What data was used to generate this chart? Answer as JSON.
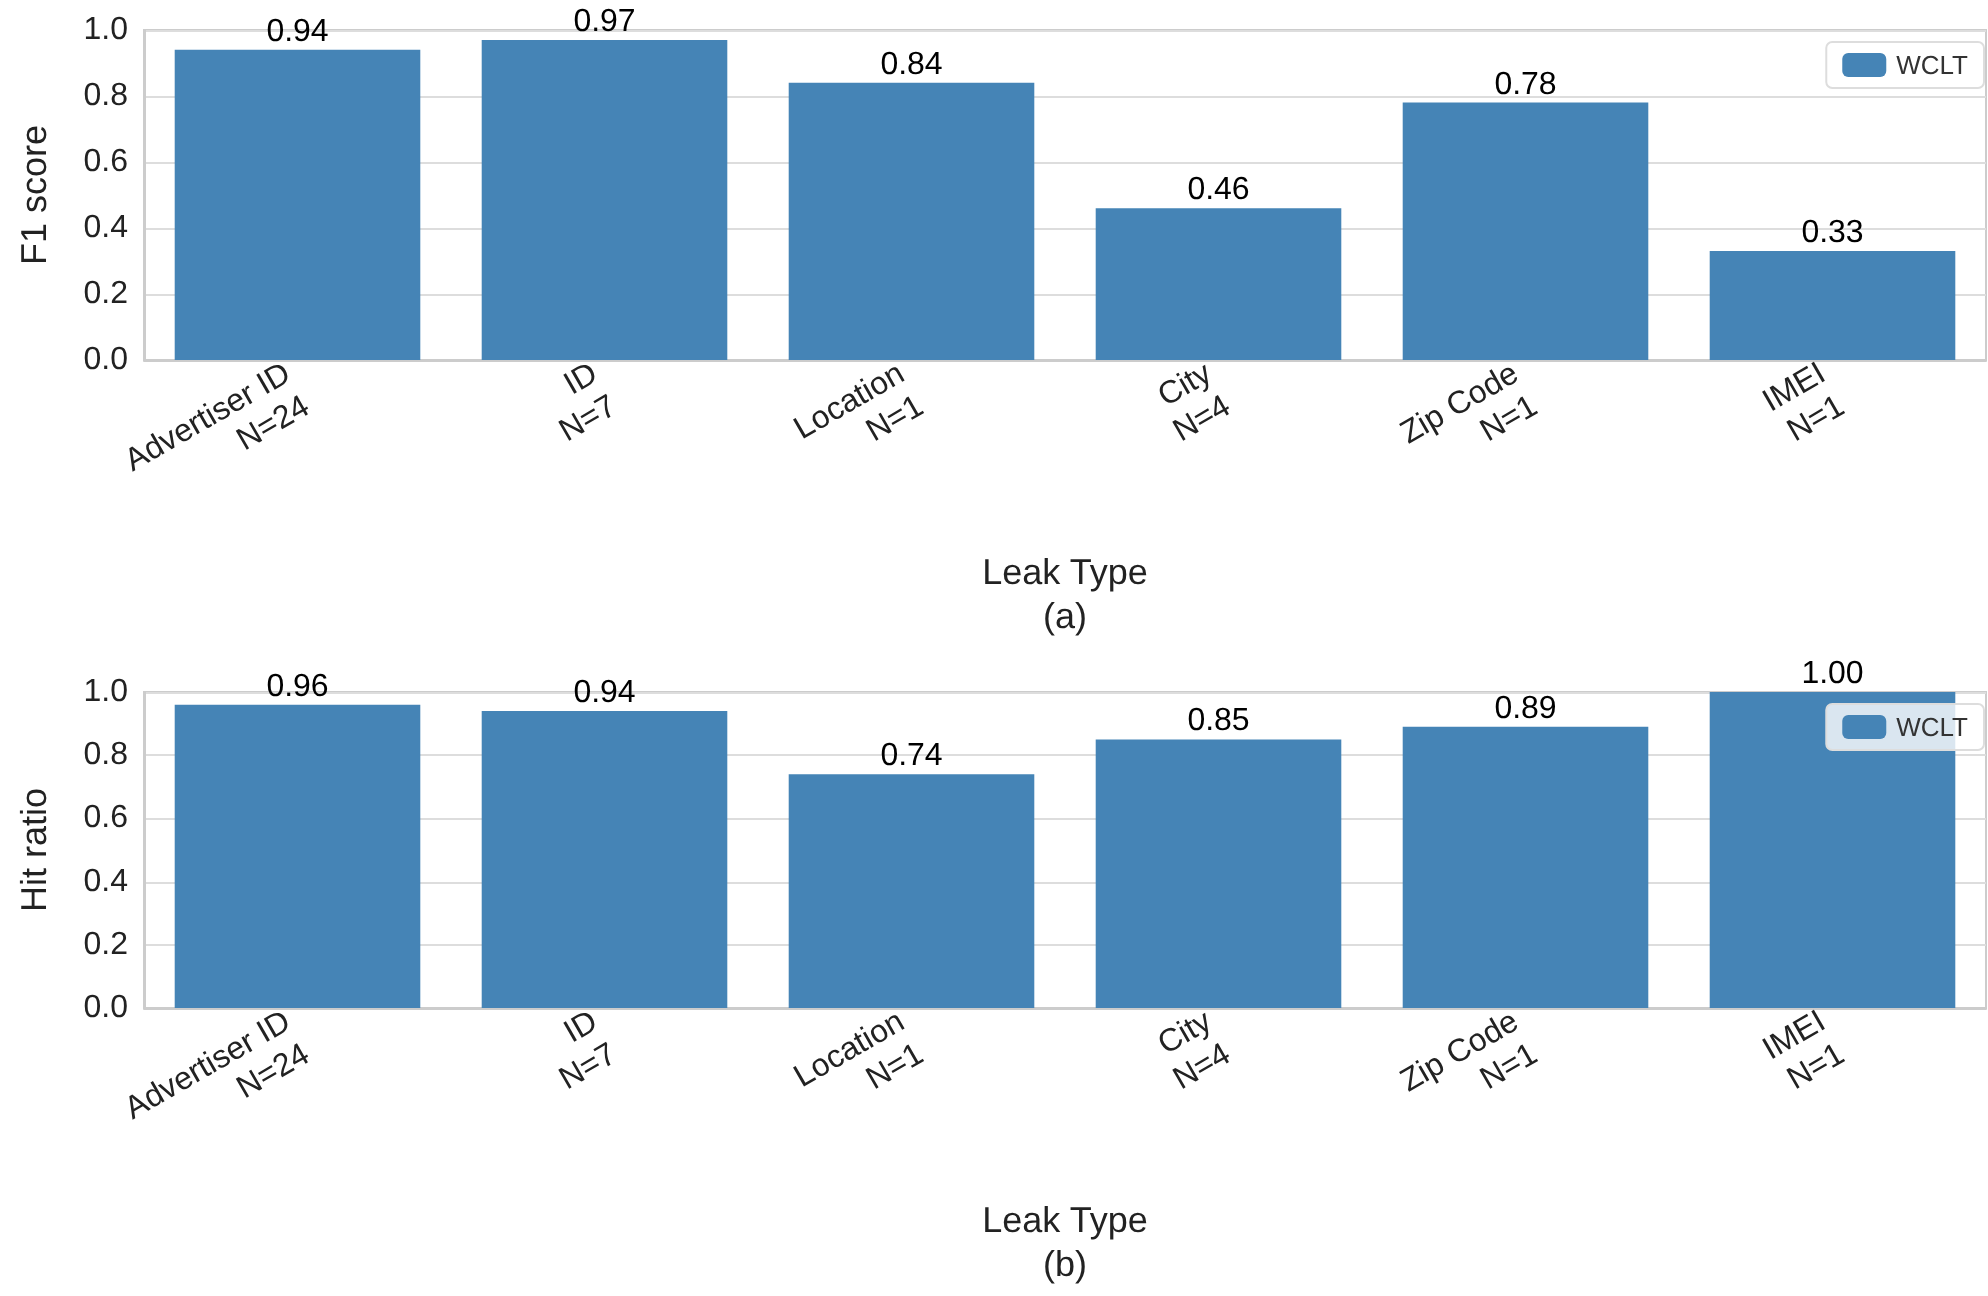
{
  "chart_data": [
    {
      "type": "bar",
      "xlabel": "Leak Type\n(a)",
      "ylabel": "F1 score",
      "categories": [
        "Advertiser ID\nN=24",
        "ID\nN=7",
        "Location\nN=1",
        "City\nN=4",
        "Zip Code\nN=1",
        "IMEI\nN=1"
      ],
      "series": [
        {
          "name": "WCLT",
          "color": "#4584b6",
          "values": [
            0.94,
            0.97,
            0.84,
            0.46,
            0.78,
            0.33
          ]
        }
      ],
      "data_labels": true,
      "ylim": [
        0,
        1
      ],
      "yticks": [
        {
          "value": 0,
          "label": "0.0"
        },
        {
          "value": 0.2,
          "label": "0.2"
        },
        {
          "value": 0.4,
          "label": "0.4"
        },
        {
          "value": 0.6,
          "label": "0.6"
        },
        {
          "value": 0.8,
          "label": "0.8"
        },
        {
          "value": 1,
          "label": "1.0"
        }
      ],
      "grid": "y",
      "legend": "top right"
    },
    {
      "type": "bar",
      "xlabel": "Leak Type\n(b)",
      "ylabel": "Hit ratio",
      "categories": [
        "Advertiser ID\nN=24",
        "ID\nN=7",
        "Location\nN=1",
        "City\nN=4",
        "Zip Code\nN=1",
        "IMEI\nN=1"
      ],
      "series": [
        {
          "name": "WCLT",
          "color": "#4584b6",
          "values": [
            0.96,
            0.94,
            0.74,
            0.85,
            0.89,
            1.0
          ],
          "value_labels": [
            "0.96",
            "0.94",
            "0.74",
            "0.85",
            "0.89",
            "1.00"
          ]
        }
      ],
      "ylim": [
        0,
        1
      ],
      "yticks": [
        {
          "value": 0,
          "label": "0.0"
        },
        {
          "value": 0.2,
          "label": "0.2"
        },
        {
          "value": 0.4,
          "label": "0.4"
        },
        {
          "value": 0.6,
          "label": "0.6"
        },
        {
          "value": 0.8,
          "label": "0.8"
        },
        {
          "value": 1,
          "label": "1.0"
        }
      ],
      "grid": "y",
      "legend": "top right"
    }
  ]
}
